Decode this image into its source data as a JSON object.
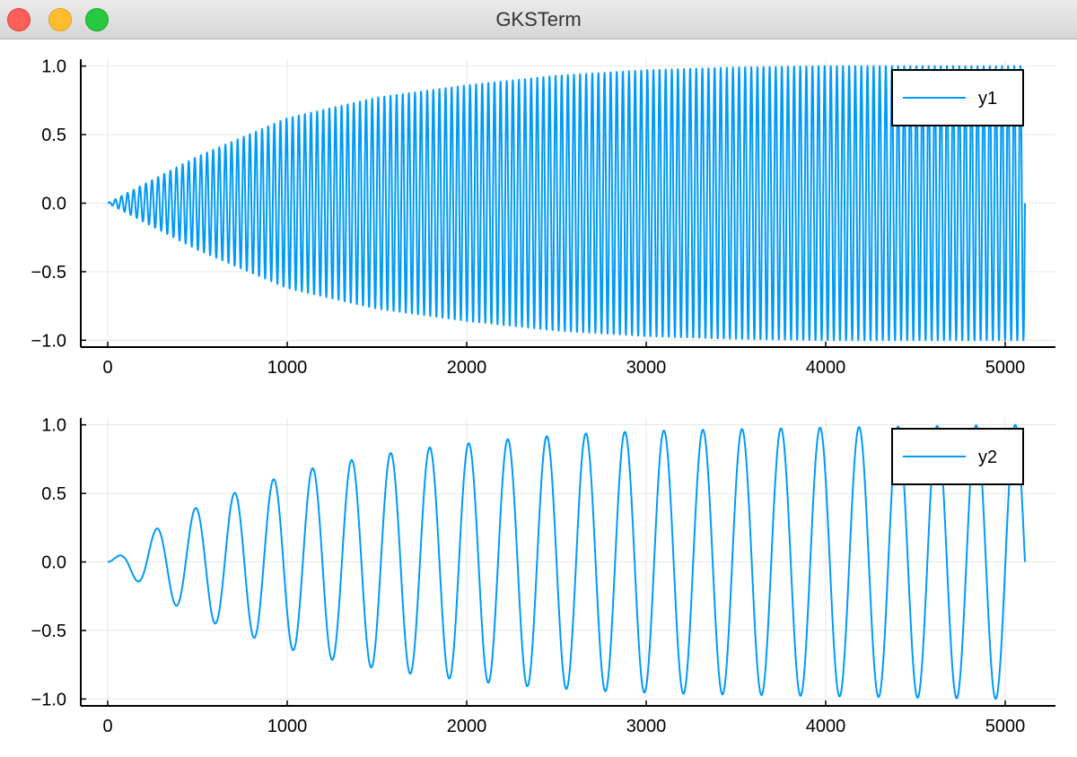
{
  "window": {
    "title": "GKSTerm"
  },
  "colors": {
    "series": "#009af9",
    "axis": "#000000",
    "grid": "#e6e6e6"
  },
  "chart_data": [
    {
      "type": "line",
      "title": "",
      "xlabel": "",
      "ylabel": "",
      "xlim": [
        -150,
        5280
      ],
      "ylim": [
        -1.05,
        1.05
      ],
      "x_ticks": [
        0,
        1000,
        2000,
        3000,
        4000,
        5000
      ],
      "x_tick_labels": [
        "0",
        "1000",
        "2000",
        "3000",
        "4000",
        "5000"
      ],
      "y_ticks": [
        -1.0,
        -0.5,
        0.0,
        0.5,
        1.0
      ],
      "y_tick_labels": [
        "−1.0",
        "−0.5",
        "0.0",
        "0.5",
        "1.0"
      ],
      "grid": true,
      "legend_position": "top-right",
      "series": [
        {
          "name": "y1",
          "x_range": [
            0,
            5110
          ],
          "oscillations": 150,
          "envelope": {
            "x": [
              0,
              500,
              1000,
              1500,
              2000,
              2500,
              3000,
              3500,
              4000,
              4500,
              5000
            ],
            "y": [
              0.0,
              0.34,
              0.62,
              0.77,
              0.86,
              0.93,
              0.97,
              0.99,
              1.0,
              1.0,
              1.0
            ]
          }
        }
      ]
    },
    {
      "type": "line",
      "title": "",
      "xlabel": "",
      "ylabel": "",
      "xlim": [
        -150,
        5280
      ],
      "ylim": [
        -1.05,
        1.05
      ],
      "x_ticks": [
        0,
        1000,
        2000,
        3000,
        4000,
        5000
      ],
      "x_tick_labels": [
        "0",
        "1000",
        "2000",
        "3000",
        "4000",
        "5000"
      ],
      "y_ticks": [
        -1.0,
        -0.5,
        0.0,
        0.5,
        1.0
      ],
      "y_tick_labels": [
        "−1.0",
        "−0.5",
        "0.0",
        "0.5",
        "1.0"
      ],
      "grid": true,
      "legend_position": "top-right",
      "series": [
        {
          "name": "y2",
          "x_range": [
            0,
            5110
          ],
          "oscillations": 23.5,
          "envelope": {
            "x": [
              0,
              80,
              280,
              500,
              720,
              940,
              1160,
              1380,
              1600,
              1820,
              2040,
              2260,
              2480,
              2700,
              2920,
              3140,
              3580,
              4000,
              4500,
              5000
            ],
            "y": [
              0.0,
              0.06,
              0.25,
              0.4,
              0.51,
              0.61,
              0.69,
              0.75,
              0.8,
              0.84,
              0.87,
              0.9,
              0.92,
              0.94,
              0.95,
              0.96,
              0.97,
              0.98,
              0.99,
              1.0
            ]
          }
        }
      ]
    }
  ]
}
